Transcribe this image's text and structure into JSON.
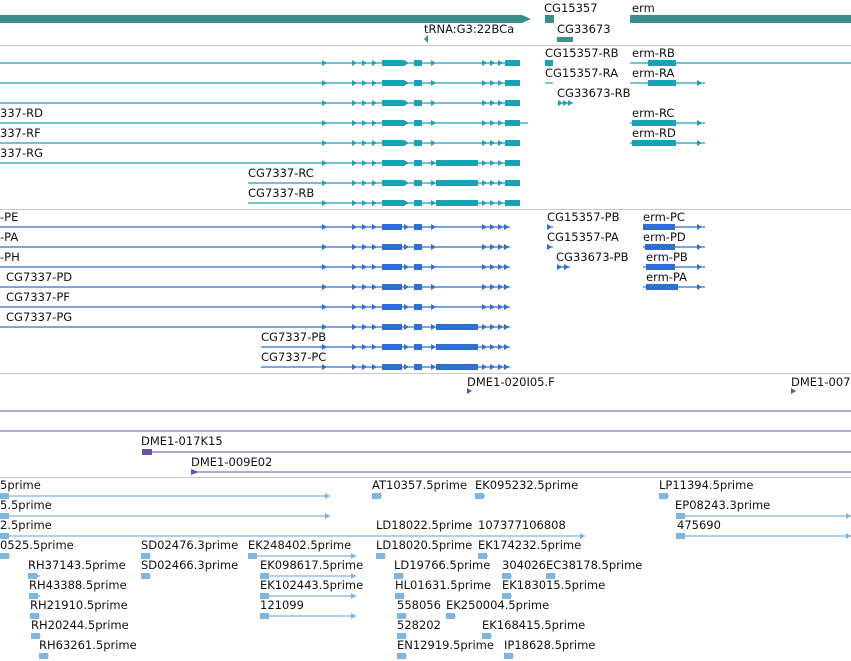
{
  "colors": {
    "gene": "#3a8f8c",
    "teal": "#1ba0b5",
    "blue": "#2e6fd1",
    "purple": "#6a51a8",
    "lightblue": "#7fb6e0",
    "separator": "#c9c9c9"
  },
  "genes": {
    "left_gene": "",
    "cg15357": "CG15357",
    "erm": "erm",
    "cg33673": "CG33673",
    "trna": "tRNA:G3:22BCa"
  },
  "transcripts1": {
    "cg15357_rb": "CG15357-RB",
    "erm_rb": "erm-RB",
    "cg15357_ra": "CG15357-RA",
    "erm_ra": "erm-RA",
    "cg33673_rb": "CG33673-RB",
    "rd": "337-RD",
    "erm_rc": "erm-RC",
    "rf": "337-RF",
    "erm_rd": "erm-RD",
    "rg": "337-RG",
    "cg7337_rc": "CG7337-RC",
    "cg7337_rb": "CG7337-RB"
  },
  "transcripts2": {
    "pe": "-PE",
    "cg15357_pb": "CG15357-PB",
    "erm_pc": "erm-PC",
    "pa": "-PA",
    "cg15357_pa": "CG15357-PA",
    "erm_pd": "erm-PD",
    "ph": "-PH",
    "cg33673_pb": "CG33673-PB",
    "erm_pb": "erm-PB",
    "cg7337_pd": "CG7337-PD",
    "erm_pa": "erm-PA",
    "cg7337_pf": "CG7337-PF",
    "cg7337_pg": "CG7337-PG",
    "cg7337_pb": "CG7337-PB",
    "cg7337_pc": "CG7337-PC"
  },
  "clones": {
    "dme1_020i05": "DME1-020I05.F",
    "dme1_007": "DME1-007",
    "dme1_017k15": "DME1-017K15",
    "dme1_009e02": "DME1-009E02"
  },
  "ests": [
    {
      "key": "e1",
      "text": "5prime"
    },
    {
      "key": "e2",
      "text": "AT10357.5prime"
    },
    {
      "key": "e3",
      "text": "EK095232.5prime"
    },
    {
      "key": "e4",
      "text": "LP11394.5prime"
    },
    {
      "key": "e5",
      "text": "5.5prime"
    },
    {
      "key": "e6",
      "text": "EP08243.3prime"
    },
    {
      "key": "e7",
      "text": "2.5prime"
    },
    {
      "key": "e8",
      "text": "LD18022.5prime"
    },
    {
      "key": "e9",
      "text": "107377106808"
    },
    {
      "key": "e10",
      "text": "475690"
    },
    {
      "key": "e11",
      "text": "0525.5prime"
    },
    {
      "key": "e12",
      "text": "SD02476.3prime"
    },
    {
      "key": "e13",
      "text": "EK248402.5prime"
    },
    {
      "key": "e14",
      "text": "LD18020.5prime"
    },
    {
      "key": "e15",
      "text": "EK174232.5prime"
    },
    {
      "key": "e16",
      "text": "RH37143.5prime"
    },
    {
      "key": "e17",
      "text": "SD02466.3prime"
    },
    {
      "key": "e18",
      "text": "EK098617.5prime"
    },
    {
      "key": "e19",
      "text": "LD19766.5prime"
    },
    {
      "key": "e20",
      "text": "304026"
    },
    {
      "key": "e21",
      "text": "EC38178.5prime"
    },
    {
      "key": "e22",
      "text": "RH43388.5prime"
    },
    {
      "key": "e23",
      "text": "EK102443.5prime"
    },
    {
      "key": "e24",
      "text": "HL01631.5prime"
    },
    {
      "key": "e25",
      "text": "EK183015.5prime"
    },
    {
      "key": "e26",
      "text": "RH21910.5prime"
    },
    {
      "key": "e27",
      "text": "121099"
    },
    {
      "key": "e28",
      "text": "558056"
    },
    {
      "key": "e29",
      "text": "EK250004.5prime"
    },
    {
      "key": "e30",
      "text": "RH20244.5prime"
    },
    {
      "key": "e31",
      "text": "528202"
    },
    {
      "key": "e32",
      "text": "EK168415.5prime"
    },
    {
      "key": "e33",
      "text": "RH63261.5prime"
    },
    {
      "key": "e34",
      "text": "EN12919.5prime"
    },
    {
      "key": "e35",
      "text": "IP18628.5prime"
    }
  ]
}
